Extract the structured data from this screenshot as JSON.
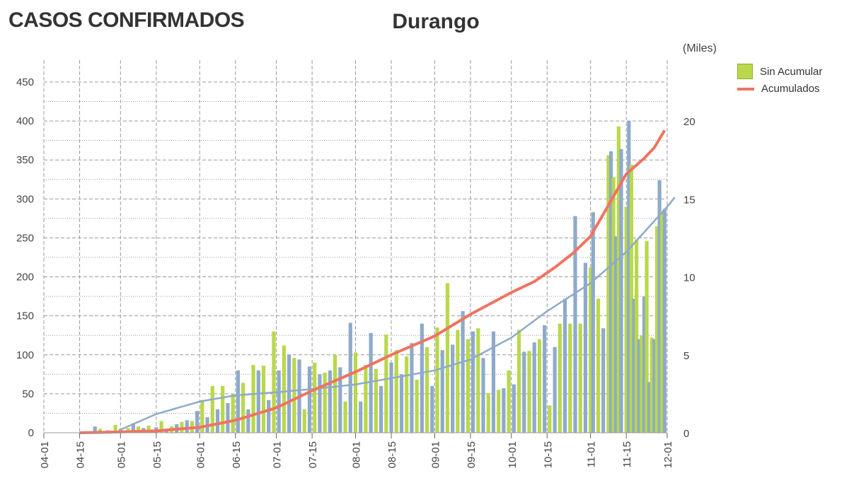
{
  "header": {
    "page_title": "CASOS CONFIRMADOS",
    "chart_title": "Durango",
    "right_unit_label": "(Miles)"
  },
  "colors": {
    "daily_bars_a": "#8eaacb",
    "daily_bars_b": "#b9d84a",
    "cumulative_line": "#f07361",
    "trend_line": "#8eaacb"
  },
  "chart_data": {
    "type": "bar",
    "title": "Durango",
    "xlabel": "",
    "ylabel": "",
    "ylabel_right": "(Miles)",
    "x_tick_labels": [
      "04-01",
      "04-15",
      "05-01",
      "05-15",
      "06-01",
      "06-15",
      "07-01",
      "07-15",
      "08-01",
      "08-15",
      "09-01",
      "09-15",
      "10-01",
      "10-15",
      "11-01",
      "11-15",
      "12-01"
    ],
    "x_tick_dates": [
      "2020-04-01",
      "2020-04-15",
      "2020-05-01",
      "2020-05-15",
      "2020-06-01",
      "2020-06-15",
      "2020-07-01",
      "2020-07-15",
      "2020-08-01",
      "2020-08-15",
      "2020-09-01",
      "2020-09-15",
      "2020-10-01",
      "2020-10-15",
      "2020-11-01",
      "2020-11-15",
      "2020-12-01"
    ],
    "xlim": [
      "2020-04-01",
      "2020-12-01"
    ],
    "ylim_left": [
      0,
      450
    ],
    "yticks_left": [
      0,
      50,
      100,
      150,
      200,
      250,
      300,
      350,
      400,
      450
    ],
    "ylim_right": [
      0,
      22.5
    ],
    "yticks_right": [
      0,
      5,
      10,
      15,
      20
    ],
    "grid": true,
    "legend_position": "top-right",
    "series": [
      {
        "name": "Sin Acumular",
        "type": "bar",
        "points": [
          [
            "2020-04-21",
            8
          ],
          [
            "2020-04-23",
            5
          ],
          [
            "2020-04-26",
            3
          ],
          [
            "2020-04-29",
            10
          ],
          [
            "2020-05-01",
            5
          ],
          [
            "2020-05-04",
            6
          ],
          [
            "2020-05-06",
            12
          ],
          [
            "2020-05-08",
            8
          ],
          [
            "2020-05-10",
            6
          ],
          [
            "2020-05-12",
            9
          ],
          [
            "2020-05-15",
            7
          ],
          [
            "2020-05-17",
            15
          ],
          [
            "2020-05-19",
            5
          ],
          [
            "2020-05-21",
            8
          ],
          [
            "2020-05-23",
            11
          ],
          [
            "2020-05-25",
            14
          ],
          [
            "2020-05-27",
            16
          ],
          [
            "2020-05-29",
            15
          ],
          [
            "2020-05-31",
            28
          ],
          [
            "2020-06-02",
            42
          ],
          [
            "2020-06-04",
            20
          ],
          [
            "2020-06-06",
            60
          ],
          [
            "2020-06-08",
            30
          ],
          [
            "2020-06-10",
            60
          ],
          [
            "2020-06-12",
            38
          ],
          [
            "2020-06-14",
            50
          ],
          [
            "2020-06-16",
            80
          ],
          [
            "2020-06-18",
            64
          ],
          [
            "2020-06-20",
            30
          ],
          [
            "2020-06-22",
            87
          ],
          [
            "2020-06-24",
            80
          ],
          [
            "2020-06-26",
            86
          ],
          [
            "2020-06-28",
            42
          ],
          [
            "2020-06-30",
            130
          ],
          [
            "2020-07-02",
            80
          ],
          [
            "2020-07-04",
            112
          ],
          [
            "2020-07-06",
            100
          ],
          [
            "2020-07-08",
            96
          ],
          [
            "2020-07-10",
            94
          ],
          [
            "2020-07-12",
            30
          ],
          [
            "2020-07-14",
            85
          ],
          [
            "2020-07-16",
            90
          ],
          [
            "2020-07-18",
            75
          ],
          [
            "2020-07-20",
            77
          ],
          [
            "2020-07-22",
            80
          ],
          [
            "2020-07-24",
            100
          ],
          [
            "2020-07-26",
            84
          ],
          [
            "2020-07-28",
            40
          ],
          [
            "2020-07-30",
            141
          ],
          [
            "2020-08-01",
            103
          ],
          [
            "2020-08-03",
            40
          ],
          [
            "2020-08-05",
            87
          ],
          [
            "2020-08-07",
            128
          ],
          [
            "2020-08-09",
            82
          ],
          [
            "2020-08-11",
            60
          ],
          [
            "2020-08-13",
            126
          ],
          [
            "2020-08-15",
            90
          ],
          [
            "2020-08-17",
            106
          ],
          [
            "2020-08-19",
            75
          ],
          [
            "2020-08-21",
            98
          ],
          [
            "2020-08-23",
            115
          ],
          [
            "2020-08-25",
            68
          ],
          [
            "2020-08-27",
            140
          ],
          [
            "2020-08-29",
            110
          ],
          [
            "2020-08-31",
            60
          ],
          [
            "2020-09-02",
            135
          ],
          [
            "2020-09-04",
            106
          ],
          [
            "2020-09-06",
            192
          ],
          [
            "2020-09-08",
            113
          ],
          [
            "2020-09-10",
            132
          ],
          [
            "2020-09-12",
            156
          ],
          [
            "2020-09-14",
            120
          ],
          [
            "2020-09-16",
            130
          ],
          [
            "2020-09-18",
            134
          ],
          [
            "2020-09-20",
            96
          ],
          [
            "2020-09-22",
            51
          ],
          [
            "2020-09-24",
            130
          ],
          [
            "2020-09-26",
            55
          ],
          [
            "2020-09-28",
            57
          ],
          [
            "2020-09-30",
            80
          ],
          [
            "2020-10-02",
            62
          ],
          [
            "2020-10-04",
            132
          ],
          [
            "2020-10-06",
            104
          ],
          [
            "2020-10-08",
            105
          ],
          [
            "2020-10-10",
            116
          ],
          [
            "2020-10-12",
            120
          ],
          [
            "2020-10-14",
            138
          ],
          [
            "2020-10-16",
            35
          ],
          [
            "2020-10-18",
            110
          ],
          [
            "2020-10-20",
            140
          ],
          [
            "2020-10-22",
            172
          ],
          [
            "2020-10-24",
            140
          ],
          [
            "2020-10-26",
            278
          ],
          [
            "2020-10-28",
            140
          ],
          [
            "2020-10-30",
            218
          ],
          [
            "2020-11-01",
            212
          ],
          [
            "2020-11-02",
            283
          ],
          [
            "2020-11-04",
            172
          ],
          [
            "2020-11-06",
            134
          ],
          [
            "2020-11-08",
            356
          ],
          [
            "2020-11-09",
            361
          ],
          [
            "2020-11-10",
            328
          ],
          [
            "2020-11-11",
            252
          ],
          [
            "2020-11-12",
            393
          ],
          [
            "2020-11-13",
            364
          ],
          [
            "2020-11-15",
            290
          ],
          [
            "2020-11-16",
            400
          ],
          [
            "2020-11-17",
            344
          ],
          [
            "2020-11-18",
            172
          ],
          [
            "2020-11-19",
            248
          ],
          [
            "2020-11-20",
            120
          ],
          [
            "2020-11-21",
            125
          ],
          [
            "2020-11-22",
            175
          ],
          [
            "2020-11-23",
            246
          ],
          [
            "2020-11-24",
            65
          ],
          [
            "2020-11-25",
            122
          ],
          [
            "2020-11-26",
            120
          ],
          [
            "2020-11-27",
            265
          ],
          [
            "2020-11-28",
            324
          ],
          [
            "2020-11-29",
            284
          ],
          [
            "2020-11-30",
            287
          ]
        ]
      },
      {
        "name": "Acumulados",
        "type": "line",
        "points": [
          [
            "2020-04-15",
            0.0
          ],
          [
            "2020-05-01",
            0.05
          ],
          [
            "2020-05-15",
            0.12
          ],
          [
            "2020-06-01",
            0.35
          ],
          [
            "2020-06-15",
            0.8
          ],
          [
            "2020-07-01",
            1.6
          ],
          [
            "2020-07-15",
            2.7
          ],
          [
            "2020-08-01",
            3.9
          ],
          [
            "2020-08-15",
            5.0
          ],
          [
            "2020-09-01",
            6.2
          ],
          [
            "2020-09-15",
            7.6
          ],
          [
            "2020-10-01",
            9.0
          ],
          [
            "2020-10-10",
            9.7
          ],
          [
            "2020-10-18",
            10.6
          ],
          [
            "2020-10-25",
            11.5
          ],
          [
            "2020-11-01",
            12.6
          ],
          [
            "2020-11-08",
            14.6
          ],
          [
            "2020-11-15",
            16.6
          ],
          [
            "2020-11-22",
            17.6
          ],
          [
            "2020-11-26",
            18.3
          ],
          [
            "2020-11-30",
            19.4
          ]
        ]
      },
      {
        "type": "line",
        "points": [
          [
            "2020-05-01",
            0.2
          ],
          [
            "2020-05-15",
            1.2
          ],
          [
            "2020-06-01",
            2.0
          ],
          [
            "2020-06-15",
            2.4
          ],
          [
            "2020-07-01",
            2.6
          ],
          [
            "2020-07-15",
            2.8
          ],
          [
            "2020-08-01",
            3.1
          ],
          [
            "2020-08-15",
            3.5
          ],
          [
            "2020-09-01",
            4.0
          ],
          [
            "2020-09-15",
            4.7
          ],
          [
            "2020-10-01",
            6.1
          ],
          [
            "2020-10-15",
            7.8
          ],
          [
            "2020-11-01",
            9.6
          ],
          [
            "2020-11-15",
            11.6
          ],
          [
            "2020-12-01",
            14.5
          ],
          [
            "2020-12-04",
            15.1
          ]
        ]
      }
    ]
  }
}
